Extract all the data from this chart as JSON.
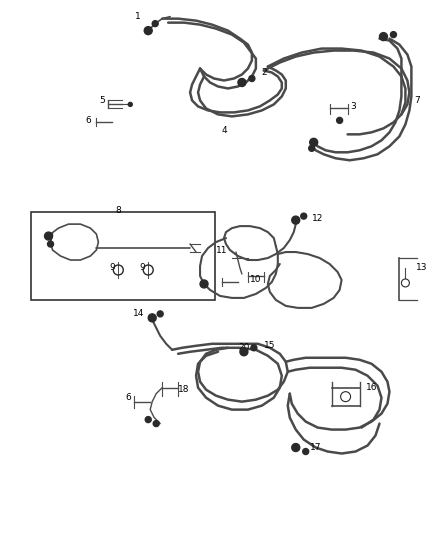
{
  "bg_color": "#ffffff",
  "line_color": "#4a4a4a",
  "label_color": "#000000",
  "fig_width": 4.38,
  "fig_height": 5.33,
  "dpi": 100,
  "fs": 6.5
}
